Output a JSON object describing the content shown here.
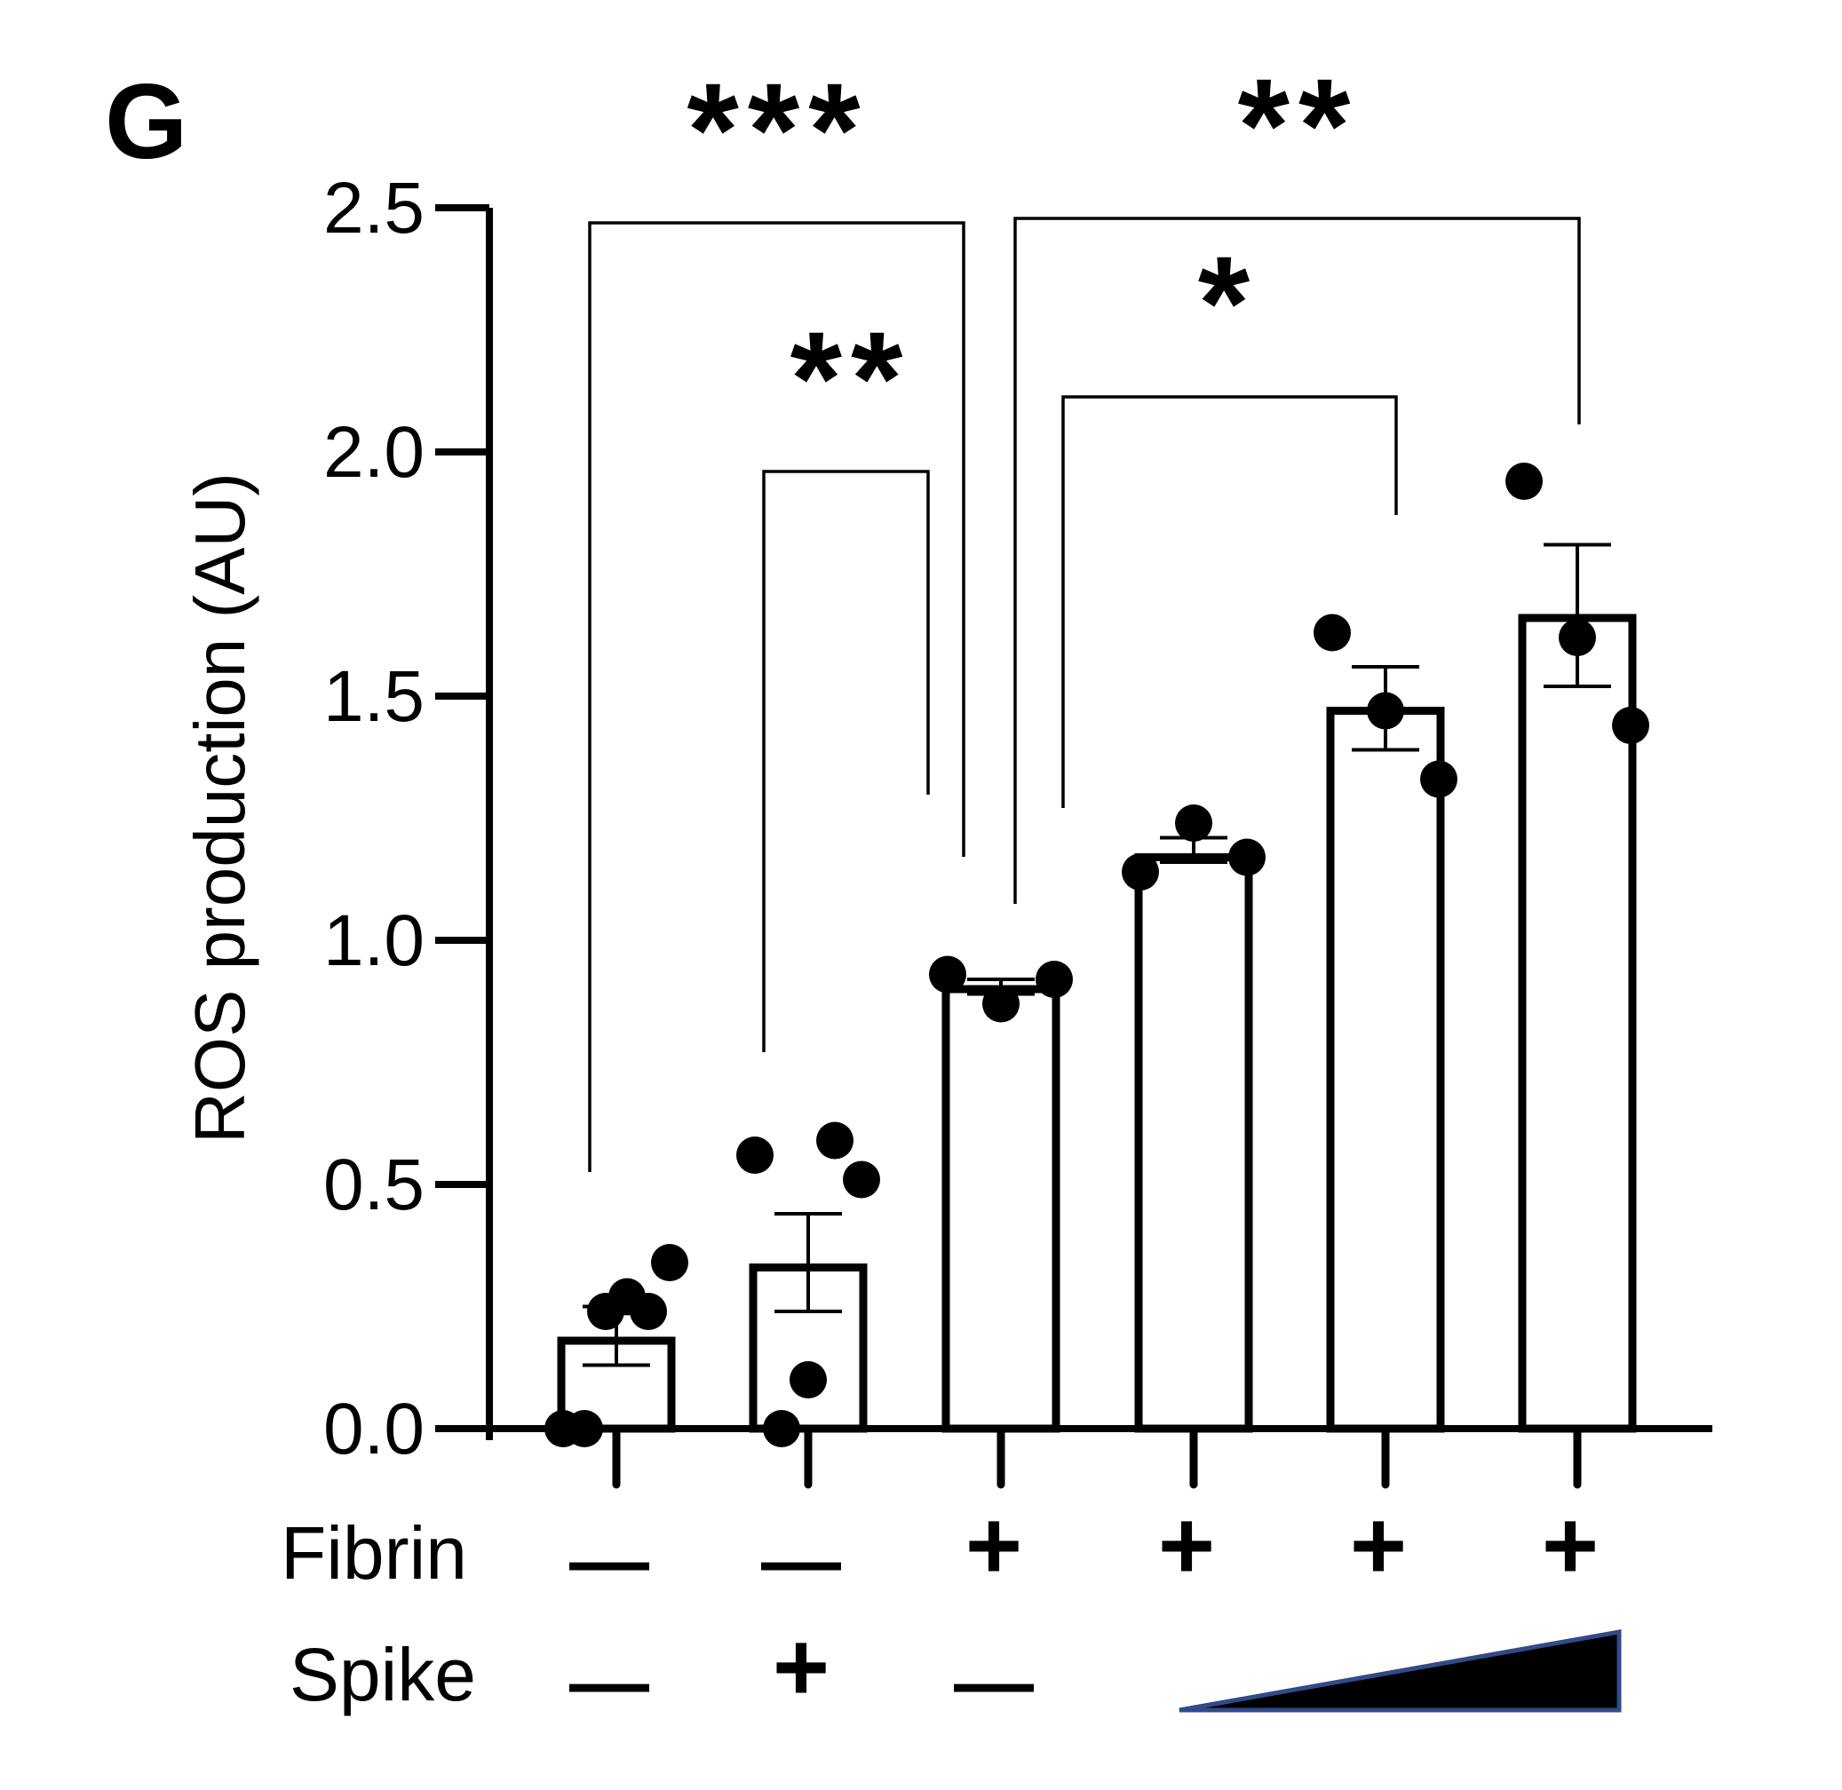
{
  "panel_label": "G",
  "chart_data": {
    "type": "bar",
    "ylabel": "ROS production (AU)",
    "ylim": [
      0,
      2.5
    ],
    "yticks": [
      "0.0",
      "0.5",
      "1.0",
      "1.5",
      "2.0",
      "2.5"
    ],
    "yticks_values": [
      0,
      0.5,
      1.0,
      1.5,
      2.0,
      2.5
    ],
    "grid": false,
    "bar_fill": "#ffffff",
    "bar_stroke": "#000000",
    "wedge_fill": "#000000",
    "wedge_stroke": "#2f4b8a",
    "bars": [
      {
        "mean": 0.18,
        "sem_low": 0.13,
        "sem_high": 0.25,
        "points": [
          0.0,
          0.0,
          0.24,
          0.27,
          0.24,
          0.34
        ]
      },
      {
        "mean": 0.33,
        "sem_low": 0.24,
        "sem_high": 0.44,
        "points": [
          0.56,
          0.0,
          0.1,
          0.59,
          0.51
        ]
      },
      {
        "mean": 0.9,
        "sem_low": 0.89,
        "sem_high": 0.92,
        "points": [
          0.93,
          0.87,
          0.92
        ]
      },
      {
        "mean": 1.17,
        "sem_low": 1.16,
        "sem_high": 1.21,
        "points": [
          1.14,
          1.24,
          1.17
        ]
      },
      {
        "mean": 1.47,
        "sem_low": 1.39,
        "sem_high": 1.56,
        "points": [
          1.63,
          1.47,
          1.33
        ]
      },
      {
        "mean": 1.66,
        "sem_low": 1.52,
        "sem_high": 1.81,
        "points": [
          1.94,
          1.62,
          1.44
        ]
      }
    ],
    "row_labels": {
      "fibrin": "Fibrin",
      "spike": "Spike"
    },
    "fibrin": [
      "—",
      "—",
      "+",
      "+",
      "+",
      "+"
    ],
    "spike": [
      "—",
      "+",
      "—",
      "",
      "",
      ""
    ],
    "spike_gradient_note": "",
    "significance": [
      {
        "from": 0,
        "to": 2,
        "label": "***"
      },
      {
        "from": 1,
        "to": 2,
        "label": "**"
      },
      {
        "from": 2,
        "to": 4,
        "label": "*"
      },
      {
        "from": 2,
        "to": 5,
        "label": "**"
      }
    ]
  }
}
